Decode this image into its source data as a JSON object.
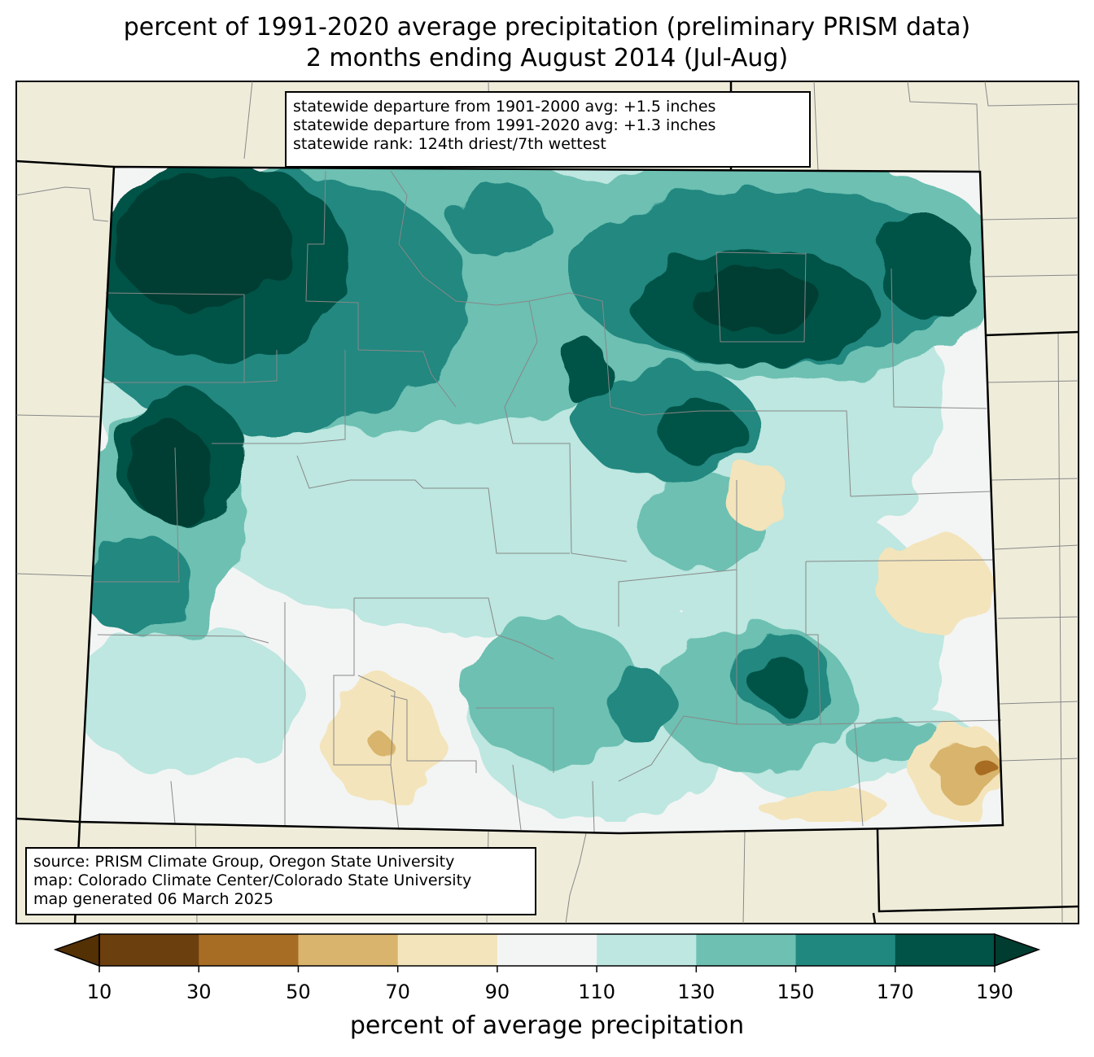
{
  "title": {
    "line1": "percent of 1991-2020 average precipitation (preliminary PRISM data)",
    "line2": "2 months ending August 2014 (Jul-Aug)"
  },
  "stats": {
    "line1": "statewide departure from 1901-2000 avg: +1.5 inches",
    "line2": "statewide departure from 1991-2020 avg: +1.3 inches",
    "line3": "statewide rank: 124th driest/7th wettest"
  },
  "source": {
    "line1": "source: PRISM Climate Group, Oregon State University",
    "line2": "map: Colorado Climate Center/Colorado State University",
    "line3": "map generated 06 March 2025"
  },
  "colorbar": {
    "label": "percent of average precipitation",
    "ticks": [
      "10",
      "30",
      "50",
      "70",
      "90",
      "110",
      "130",
      "150",
      "170",
      "190"
    ],
    "colors": [
      "#6b3f0e",
      "#a86d24",
      "#d8b46c",
      "#f3e4bb",
      "#f3f5f4",
      "#bde7e0",
      "#6dc0b2",
      "#218880",
      "#005346"
    ],
    "under_color": "#543005",
    "over_color": "#003c30"
  },
  "map": {
    "background_color": "#efedda"
  }
}
